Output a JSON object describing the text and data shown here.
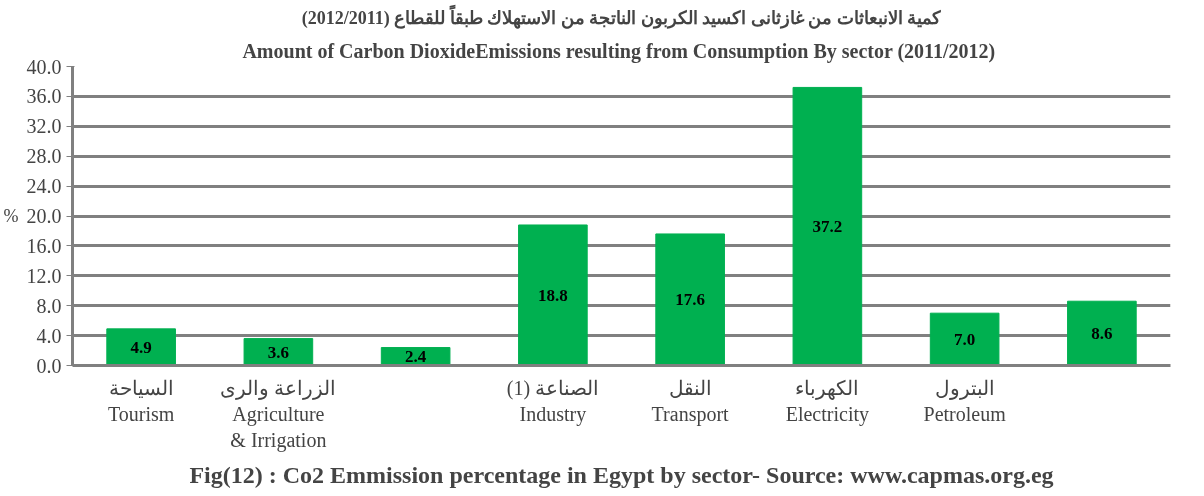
{
  "chart_data": {
    "type": "bar",
    "title": "كمية الانبعاثات من غازثانى اكسيد الكربون الناتجة من الاستهلاك طبقاً للقطاع (2012/2011)",
    "subtitle": "Amount of  Carbon DioxideEmissions resulting from Consumption By sector (2011/2012)",
    "ylabel": "%",
    "annotations": [
      "Fig(12) : Co2 Emmission percentage in Egypt by sector- Source: www.capmas.org.eg"
    ],
    "categories": [
      "السياحة\nTourism",
      "الزراعة والرى\nAgriculture\n& Irrigation",
      null,
      "الصناعة (1)\nIndustry",
      "النقل\nTransport",
      "الكهرباء\nElectricity",
      "البترول\nPetroleum",
      null
    ],
    "values": [
      4.9,
      3.6,
      2.4,
      18.8,
      17.6,
      37.2,
      7.0,
      8.6
    ],
    "value_labels": [
      "4.9",
      "3.6",
      "2.4",
      "18.8",
      "17.6",
      "37.2",
      "7.0",
      "8.6"
    ],
    "color": "#00b050",
    "ylim": [
      0,
      40
    ],
    "yticks": [
      {
        "value": 0,
        "label": "0.0"
      },
      {
        "value": 4,
        "label": "4.0"
      },
      {
        "value": 8,
        "label": "8.0"
      },
      {
        "value": 12,
        "label": "12.0"
      },
      {
        "value": 16,
        "label": "16.0"
      },
      {
        "value": 20,
        "label": "20.0"
      },
      {
        "value": 24,
        "label": "24.0"
      },
      {
        "value": 28,
        "label": "28.0"
      },
      {
        "value": 32,
        "label": "32.0"
      },
      {
        "value": 36,
        "label": "36.0"
      },
      {
        "value": 40,
        "label": "40.0"
      }
    ],
    "grid": "y"
  }
}
